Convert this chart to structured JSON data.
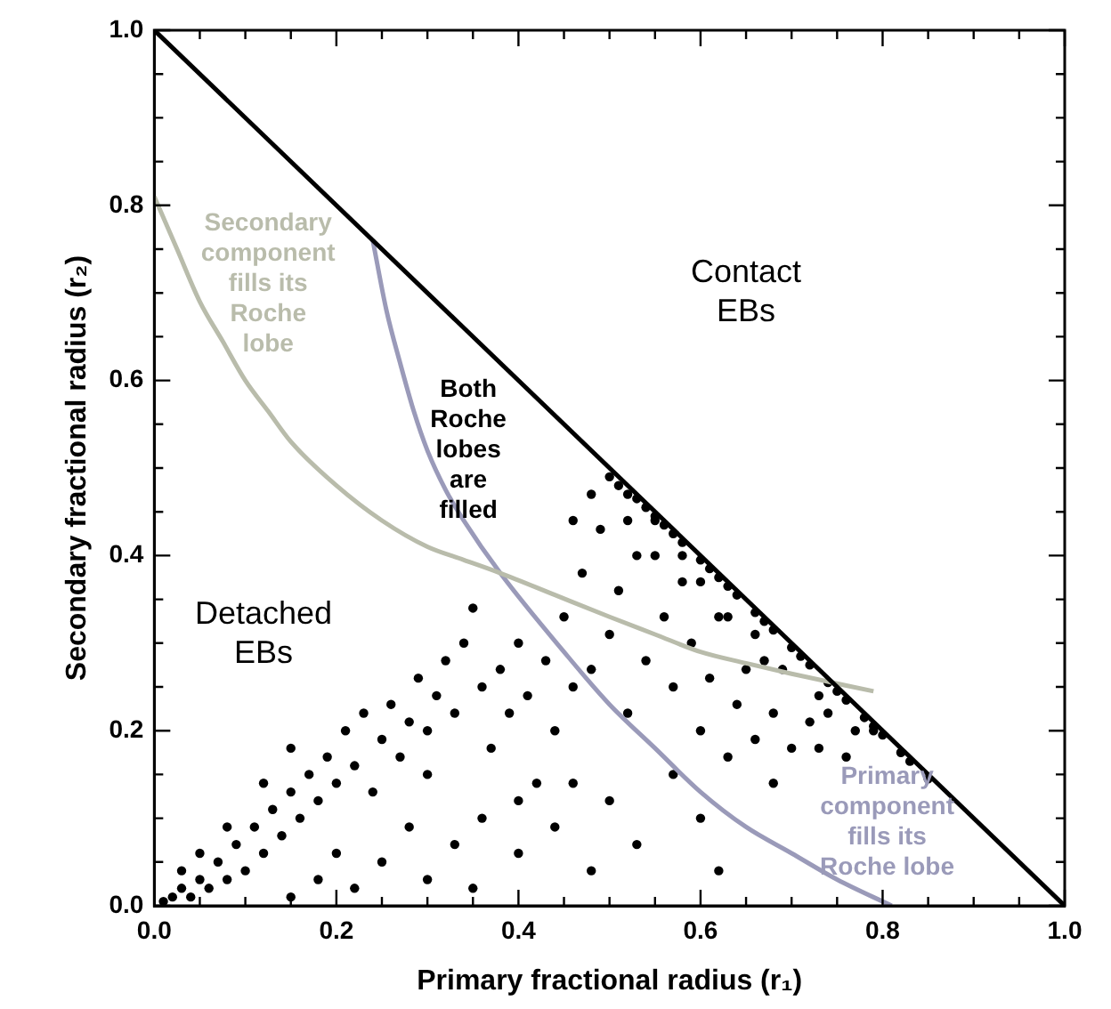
{
  "chart_data": {
    "type": "scatter",
    "xlabel": "Primary fractional radius (r₁)",
    "ylabel": "Secondary fractional radius (r₂)",
    "xlim": [
      0,
      1
    ],
    "ylim": [
      0,
      1
    ],
    "xticks": [
      {
        "value": 0,
        "label": "0.0"
      },
      {
        "value": 0.05,
        "label": null
      },
      {
        "value": 0.1,
        "label": null
      },
      {
        "value": 0.15,
        "label": null
      },
      {
        "value": 0.2,
        "label": "0.2"
      },
      {
        "value": 0.25,
        "label": null
      },
      {
        "value": 0.3,
        "label": null
      },
      {
        "value": 0.35,
        "label": null
      },
      {
        "value": 0.4,
        "label": "0.4"
      },
      {
        "value": 0.45,
        "label": null
      },
      {
        "value": 0.5,
        "label": null
      },
      {
        "value": 0.55,
        "label": null
      },
      {
        "value": 0.6,
        "label": "0.6"
      },
      {
        "value": 0.65,
        "label": null
      },
      {
        "value": 0.7,
        "label": null
      },
      {
        "value": 0.75,
        "label": null
      },
      {
        "value": 0.8,
        "label": "0.8"
      },
      {
        "value": 0.85,
        "label": null
      },
      {
        "value": 0.9,
        "label": null
      },
      {
        "value": 0.95,
        "label": null
      },
      {
        "value": 1,
        "label": "1.0"
      }
    ],
    "yticks": [
      {
        "value": 0,
        "label": "0.0"
      },
      {
        "value": 0.05,
        "label": null
      },
      {
        "value": 0.1,
        "label": null
      },
      {
        "value": 0.15,
        "label": null
      },
      {
        "value": 0.2,
        "label": "0.2"
      },
      {
        "value": 0.25,
        "label": null
      },
      {
        "value": 0.3,
        "label": null
      },
      {
        "value": 0.35,
        "label": null
      },
      {
        "value": 0.4,
        "label": "0.4"
      },
      {
        "value": 0.45,
        "label": null
      },
      {
        "value": 0.5,
        "label": null
      },
      {
        "value": 0.55,
        "label": null
      },
      {
        "value": 0.6,
        "label": "0.6"
      },
      {
        "value": 0.65,
        "label": null
      },
      {
        "value": 0.7,
        "label": null
      },
      {
        "value": 0.75,
        "label": null
      },
      {
        "value": 0.8,
        "label": "0.8"
      },
      {
        "value": 0.85,
        "label": null
      },
      {
        "value": 0.9,
        "label": null
      },
      {
        "value": 0.95,
        "label": null
      },
      {
        "value": 1,
        "label": "1.0"
      }
    ],
    "grid": false,
    "legend": false,
    "marker": "circle",
    "series": [
      {
        "type": "line",
        "marker": "none",
        "color": "#000000",
        "x": [
          0,
          1
        ],
        "values": [
          1,
          0
        ]
      },
      {
        "type": "line",
        "marker": "none",
        "name": "Secondary component fills its Roche lobe",
        "color": "#b9bcab",
        "x": [
          0,
          0.025,
          0.05,
          0.075,
          0.1,
          0.125,
          0.15,
          0.2,
          0.25,
          0.3,
          0.34,
          0.38,
          0.44,
          0.5,
          0.55,
          0.6,
          0.65,
          0.7,
          0.79
        ],
        "values": [
          0.81,
          0.75,
          0.69,
          0.645,
          0.6,
          0.565,
          0.53,
          0.48,
          0.44,
          0.41,
          0.395,
          0.38,
          0.355,
          0.33,
          0.31,
          0.29,
          0.277,
          0.265,
          0.245
        ]
      },
      {
        "type": "line",
        "marker": "none",
        "name": "Primary component fills its Roche lobe",
        "color": "#9a9ab9",
        "x": [
          0.24,
          0.255,
          0.27,
          0.285,
          0.3,
          0.32,
          0.34,
          0.38,
          0.45,
          0.5,
          0.55,
          0.6,
          0.65,
          0.7,
          0.75,
          0.81
        ],
        "values": [
          0.76,
          0.68,
          0.62,
          0.565,
          0.52,
          0.475,
          0.44,
          0.38,
          0.29,
          0.23,
          0.18,
          0.13,
          0.09,
          0.06,
          0.03,
          0
        ]
      },
      {
        "color": "#000000",
        "x": [
          0.01,
          0.02,
          0.03,
          0.04,
          0.05,
          0.03,
          0.06,
          0.07,
          0.08,
          0.05,
          0.09,
          0.1,
          0.11,
          0.12,
          0.13,
          0.08,
          0.14,
          0.15,
          0.16,
          0.12,
          0.17,
          0.18,
          0.19,
          0.2,
          0.15,
          0.21,
          0.22,
          0.23,
          0.24,
          0.25,
          0.26,
          0.27,
          0.28,
          0.29,
          0.3,
          0.3,
          0.31,
          0.32,
          0.33,
          0.34,
          0.35,
          0.36,
          0.37,
          0.38,
          0.39,
          0.4,
          0.41,
          0.42,
          0.43,
          0.44,
          0.45,
          0.46,
          0.47,
          0.48,
          0.49,
          0.5,
          0.51,
          0.52,
          0.53,
          0.54,
          0.55,
          0.56,
          0.57,
          0.58,
          0.59,
          0.6,
          0.61,
          0.62,
          0.63,
          0.64,
          0.65,
          0.66,
          0.67,
          0.68,
          0.7,
          0.72,
          0.73,
          0.74,
          0.76,
          0.68,
          0.25,
          0.28,
          0.3,
          0.33,
          0.36,
          0.35,
          0.4,
          0.44,
          0.48,
          0.5,
          0.53,
          0.57,
          0.6,
          0.62,
          0.46,
          0.4,
          0.2,
          0.18,
          0.22,
          0.15,
          0.5,
          0.51,
          0.52,
          0.53,
          0.54,
          0.55,
          0.56,
          0.57,
          0.58,
          0.6,
          0.61,
          0.62,
          0.63,
          0.64,
          0.66,
          0.67,
          0.68,
          0.7,
          0.71,
          0.72,
          0.74,
          0.75,
          0.76,
          0.78,
          0.79,
          0.8,
          0.82,
          0.83,
          0.85,
          0.48,
          0.46,
          0.52,
          0.55,
          0.58,
          0.6,
          0.63,
          0.66,
          0.69,
          0.77,
          0.79,
          0.73
        ],
        "values": [
          0.005,
          0.01,
          0.02,
          0.01,
          0.03,
          0.04,
          0.02,
          0.05,
          0.03,
          0.06,
          0.07,
          0.04,
          0.09,
          0.06,
          0.11,
          0.09,
          0.08,
          0.13,
          0.1,
          0.14,
          0.15,
          0.12,
          0.17,
          0.14,
          0.18,
          0.2,
          0.16,
          0.22,
          0.13,
          0.19,
          0.23,
          0.17,
          0.21,
          0.26,
          0.15,
          0.2,
          0.24,
          0.28,
          0.22,
          0.3,
          0.34,
          0.25,
          0.18,
          0.27,
          0.22,
          0.3,
          0.24,
          0.14,
          0.28,
          0.2,
          0.33,
          0.25,
          0.38,
          0.27,
          0.43,
          0.31,
          0.36,
          0.22,
          0.4,
          0.28,
          0.44,
          0.33,
          0.25,
          0.37,
          0.3,
          0.2,
          0.26,
          0.33,
          0.17,
          0.23,
          0.27,
          0.19,
          0.28,
          0.22,
          0.18,
          0.21,
          0.18,
          0.22,
          0.17,
          0.14,
          0.05,
          0.09,
          0.03,
          0.07,
          0.1,
          0.02,
          0.06,
          0.09,
          0.04,
          0.12,
          0.07,
          0.15,
          0.1,
          0.04,
          0.14,
          0.12,
          0.06,
          0.03,
          0.02,
          0.01,
          0.49,
          0.48,
          0.47,
          0.465,
          0.455,
          0.445,
          0.435,
          0.425,
          0.415,
          0.395,
          0.385,
          0.375,
          0.365,
          0.355,
          0.335,
          0.325,
          0.315,
          0.295,
          0.285,
          0.275,
          0.255,
          0.245,
          0.235,
          0.215,
          0.205,
          0.195,
          0.175,
          0.165,
          0.145,
          0.47,
          0.44,
          0.44,
          0.4,
          0.4,
          0.37,
          0.33,
          0.31,
          0.27,
          0.2,
          0.2,
          0.24
        ]
      }
    ],
    "annotations": [
      "Contact EBs",
      "Detached EBs",
      "Both Roche lobes are filled"
    ]
  }
}
